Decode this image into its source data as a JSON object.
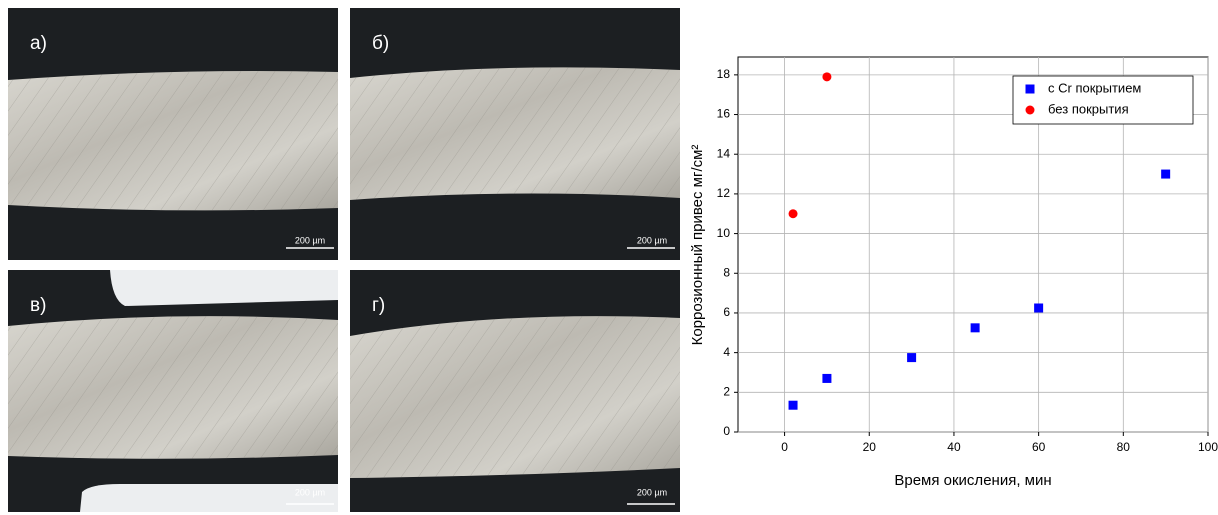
{
  "panels": [
    {
      "label": "а)",
      "scale": "200 µm"
    },
    {
      "label": "б)",
      "scale": "200 µm"
    },
    {
      "label": "в)",
      "scale": "200 µm"
    },
    {
      "label": "г)",
      "scale": "200 µm"
    }
  ],
  "chart_data": {
    "type": "scatter",
    "x_label": "Время окисления, мин",
    "y_label": "Коррозионный привес мг/см²",
    "xlim": [
      -11,
      100
    ],
    "xticks": [
      0,
      20,
      40,
      60,
      80,
      100
    ],
    "ylim": [
      0,
      18.9
    ],
    "yticks": [
      0,
      2,
      4,
      6,
      8,
      10,
      12,
      14,
      16,
      18
    ],
    "grid": true,
    "legend": "upper right",
    "series": [
      {
        "name": "с Cr покрытием",
        "color": "#0000ff",
        "marker": "square",
        "x": [
          2,
          10,
          30,
          45,
          60,
          90
        ],
        "values": [
          1.35,
          2.7,
          3.75,
          5.25,
          6.25,
          13.0
        ]
      },
      {
        "name": "без покрытия",
        "color": "#ff0000",
        "marker": "circle",
        "x": [
          2,
          10
        ],
        "values": [
          11.0,
          17.9
        ]
      }
    ]
  }
}
